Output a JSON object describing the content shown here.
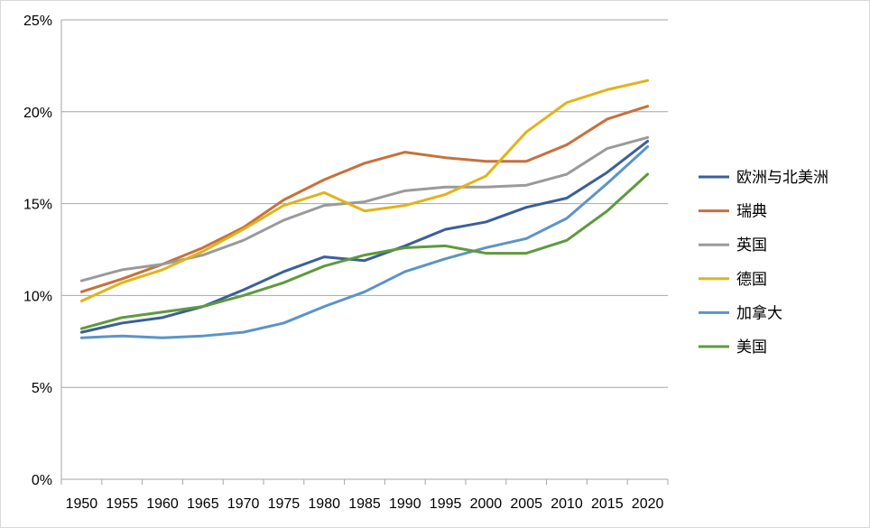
{
  "chart_data": {
    "type": "line",
    "title": "",
    "xlabel": "",
    "ylabel": "",
    "x": [
      1950,
      1955,
      1960,
      1965,
      1970,
      1975,
      1980,
      1985,
      1990,
      1995,
      2000,
      2005,
      2010,
      2015,
      2020
    ],
    "xlim": [
      1950,
      2020
    ],
    "ylim": [
      0,
      25
    ],
    "y_ticks": [
      "0%",
      "5%",
      "10%",
      "15%",
      "20%",
      "25%"
    ],
    "x_ticks": [
      "1950",
      "1955",
      "1960",
      "1965",
      "1970",
      "1975",
      "1980",
      "1985",
      "1990",
      "1995",
      "2000",
      "2005",
      "2010",
      "2015",
      "2020"
    ],
    "grid": true,
    "legend_position": "right",
    "series": [
      {
        "name": "欧洲与北美洲",
        "color": "#3A5F9A",
        "values": [
          8.0,
          8.5,
          8.8,
          9.4,
          10.3,
          11.3,
          12.1,
          11.9,
          12.7,
          13.6,
          14.0,
          14.8,
          15.3,
          16.7,
          18.4
        ]
      },
      {
        "name": "瑞典",
        "color": "#C8703A",
        "values": [
          10.2,
          10.9,
          11.7,
          12.6,
          13.7,
          15.2,
          16.3,
          17.2,
          17.8,
          17.5,
          17.3,
          17.3,
          18.2,
          19.6,
          20.3
        ]
      },
      {
        "name": "英国",
        "color": "#9A9A9A",
        "values": [
          10.8,
          11.4,
          11.7,
          12.2,
          13.0,
          14.1,
          14.9,
          15.1,
          15.7,
          15.9,
          15.9,
          16.0,
          16.6,
          18.0,
          18.6
        ]
      },
      {
        "name": "德国",
        "color": "#E2B318",
        "values": [
          9.7,
          10.7,
          11.4,
          12.4,
          13.6,
          14.9,
          15.6,
          14.6,
          14.9,
          15.5,
          16.5,
          18.9,
          20.5,
          21.2,
          21.7
        ]
      },
      {
        "name": "加拿大",
        "color": "#5A94C8",
        "values": [
          7.7,
          7.8,
          7.7,
          7.8,
          8.0,
          8.5,
          9.4,
          10.2,
          11.3,
          12.0,
          12.6,
          13.1,
          14.2,
          16.1,
          18.1
        ]
      },
      {
        "name": "美国",
        "color": "#5E9A3C",
        "values": [
          8.2,
          8.8,
          9.1,
          9.4,
          10.0,
          10.7,
          11.6,
          12.2,
          12.6,
          12.7,
          12.3,
          12.3,
          13.0,
          14.6,
          16.6
        ]
      }
    ]
  }
}
